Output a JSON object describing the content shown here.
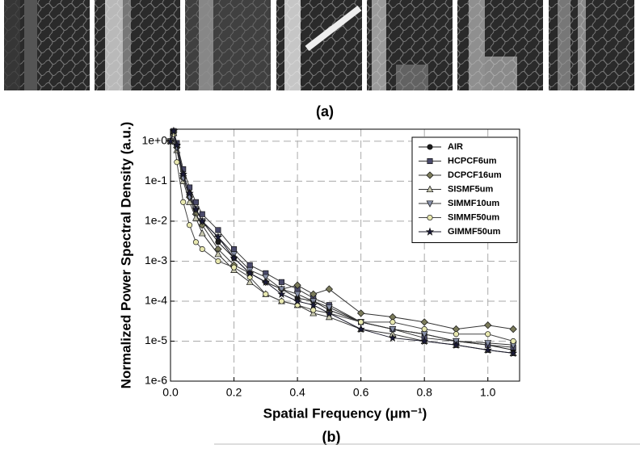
{
  "panel_labels": [
    "(a)",
    "(b)"
  ],
  "chart_data": {
    "type": "line",
    "xlabel": "Spatial Frequency (μm⁻¹)",
    "ylabel": "Normalized Power Spectral Density (a.u.)",
    "x": [
      0,
      0.01,
      0.02,
      0.04,
      0.06,
      0.08,
      0.1,
      0.15,
      0.2,
      0.25,
      0.3,
      0.35,
      0.4,
      0.45,
      0.5,
      0.6,
      0.7,
      0.8,
      0.9,
      1.0,
      1.08
    ],
    "series": [
      {
        "name": "AIR",
        "color": "#1a1a1a",
        "fill": "#1a1a1a",
        "marker": "circle",
        "values": [
          1,
          1.8,
          0.8,
          0.15,
          0.05,
          0.02,
          0.01,
          0.003,
          0.0012,
          0.0005,
          0.0003,
          0.0002,
          0.00012,
          0.0001,
          6e-05,
          3e-05,
          2e-05,
          1.5e-05,
          1e-05,
          8e-06,
          6e-06
        ]
      },
      {
        "name": "HCPCF6um",
        "color": "#333333",
        "fill": "#4a4a6a",
        "marker": "square",
        "values": [
          1,
          1.8,
          0.9,
          0.2,
          0.07,
          0.03,
          0.015,
          0.006,
          0.002,
          0.0008,
          0.0005,
          0.0003,
          0.0002,
          0.00012,
          8e-05,
          3e-05,
          2e-05,
          1.2e-05,
          1e-05,
          8e-06,
          7e-06
        ]
      },
      {
        "name": "DCPCF16um",
        "color": "#333333",
        "fill": "#7a7a5a",
        "marker": "diamond",
        "values": [
          1,
          1.7,
          0.7,
          0.12,
          0.04,
          0.015,
          0.008,
          0.002,
          0.0008,
          0.0005,
          0.0003,
          0.0002,
          0.00025,
          0.00015,
          0.0002,
          5e-05,
          4e-05,
          3e-05,
          2e-05,
          2.5e-05,
          2e-05
        ]
      },
      {
        "name": "SISMF5um",
        "color": "#333333",
        "fill": "#c8c8b0",
        "marker": "triangle-up",
        "values": [
          1,
          1.6,
          0.6,
          0.1,
          0.03,
          0.012,
          0.005,
          0.0015,
          0.0006,
          0.0003,
          0.00015,
          0.0001,
          8e-05,
          5e-05,
          4e-05,
          2e-05,
          1.5e-05,
          1e-05,
          8e-06,
          6e-06,
          5e-06
        ]
      },
      {
        "name": "SIMMF10um",
        "color": "#333333",
        "fill": "#8890a8",
        "marker": "triangle-down",
        "values": [
          1,
          1.7,
          0.7,
          0.12,
          0.04,
          0.02,
          0.01,
          0.004,
          0.0015,
          0.0006,
          0.0004,
          0.0002,
          0.00015,
          0.0001,
          7e-05,
          3e-05,
          2e-05,
          1.5e-05,
          1e-05,
          9e-06,
          8e-06
        ]
      },
      {
        "name": "SIMMF50um",
        "color": "#444444",
        "fill": "#e8e8b0",
        "marker": "circle",
        "values": [
          1,
          1.5,
          0.3,
          0.03,
          0.008,
          0.003,
          0.002,
          0.001,
          0.0007,
          0.0004,
          0.00015,
          0.0001,
          8e-05,
          6e-05,
          5e-05,
          3e-05,
          3e-05,
          2e-05,
          1.5e-05,
          1.5e-05,
          1e-05
        ]
      },
      {
        "name": "GIMMF50um",
        "color": "#1a1a2a",
        "fill": "#1a1a3a",
        "marker": "star",
        "values": [
          1,
          1.8,
          0.8,
          0.15,
          0.05,
          0.02,
          0.01,
          0.004,
          0.0012,
          0.0005,
          0.0003,
          0.00015,
          0.0001,
          8e-05,
          5e-05,
          2e-05,
          1.2e-05,
          1e-05,
          8e-06,
          6e-06,
          5e-06
        ]
      }
    ],
    "xlim": [
      0,
      1.1
    ],
    "xticks": [
      {
        "value": 0,
        "label": "0.0"
      },
      0.2,
      0.4,
      0.6,
      0.8,
      {
        "value": 1,
        "label": "1.0"
      }
    ],
    "ylim": [
      1e-06,
      2
    ],
    "yscale": "log",
    "yticks": [
      {
        "value": 1e-06,
        "label": "1e-6"
      },
      {
        "value": 1e-05,
        "label": "1e-5"
      },
      {
        "value": 0.0001,
        "label": "1e-4"
      },
      {
        "value": 0.001,
        "label": "1e-3"
      },
      {
        "value": 0.01,
        "label": "1e-2"
      },
      {
        "value": 0.1,
        "label": "1e-1"
      },
      {
        "value": 1,
        "label": "1e+0"
      }
    ],
    "grid": true,
    "legend": "upper right"
  }
}
